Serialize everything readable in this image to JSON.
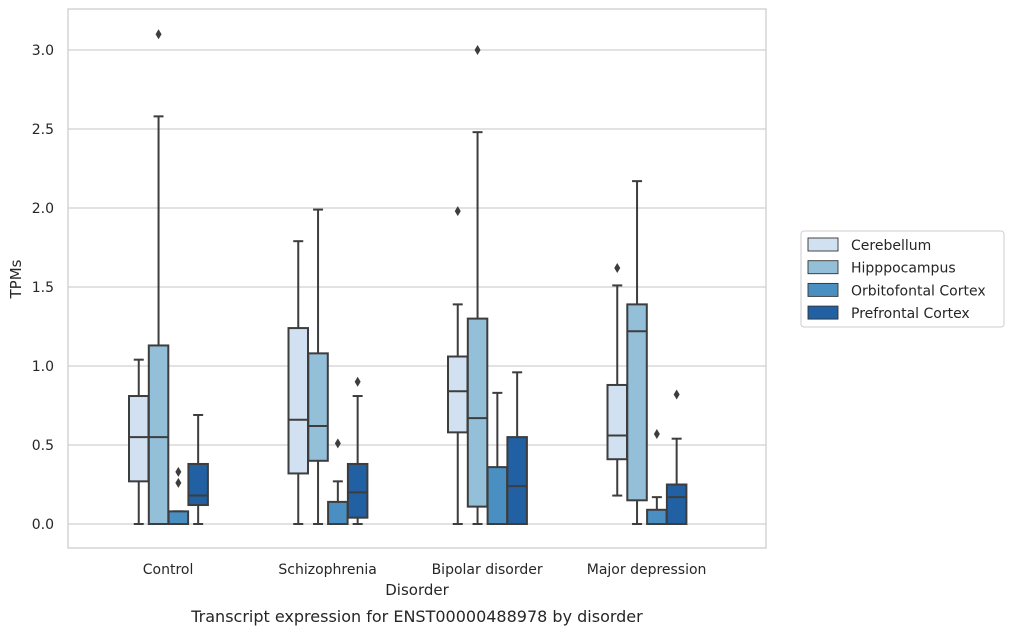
{
  "chart_data": {
    "type": "box",
    "xlabel": "Disorder",
    "ylabel": "TPMs",
    "caption": "Transcript expression for ENST00000488978 by disorder",
    "categories": [
      "Control",
      "Schizophrenia",
      "Bipolar disorder",
      "Major depression"
    ],
    "yticks": [
      "0.0",
      "0.5",
      "1.0",
      "1.5",
      "2.0",
      "2.5",
      "3.0"
    ],
    "ylim": [
      -0.15,
      3.25
    ],
    "grid": "horizontal",
    "legend_position": "right",
    "series": [
      {
        "name": "Cerebellum",
        "color": "#d1e1f1",
        "boxes": [
          {
            "min": 0.0,
            "q1": 0.27,
            "median": 0.55,
            "q3": 0.81,
            "max": 1.04,
            "outliers": []
          },
          {
            "min": 0.0,
            "q1": 0.32,
            "median": 0.66,
            "q3": 1.24,
            "max": 1.79,
            "outliers": []
          },
          {
            "min": 0.0,
            "q1": 0.58,
            "median": 0.84,
            "q3": 1.06,
            "max": 1.39,
            "outliers": [
              1.98
            ]
          },
          {
            "min": 0.18,
            "q1": 0.41,
            "median": 0.56,
            "q3": 0.88,
            "max": 1.51,
            "outliers": [
              1.62
            ]
          }
        ]
      },
      {
        "name": "Hipppocampus",
        "color": "#94bfd9",
        "boxes": [
          {
            "min": 0.0,
            "q1": 0.0,
            "median": 0.55,
            "q3": 1.13,
            "max": 2.58,
            "outliers": [
              3.1
            ]
          },
          {
            "min": 0.0,
            "q1": 0.4,
            "median": 0.62,
            "q3": 1.08,
            "max": 1.99,
            "outliers": []
          },
          {
            "min": 0.0,
            "q1": 0.11,
            "median": 0.67,
            "q3": 1.3,
            "max": 2.48,
            "outliers": [
              3.0
            ]
          },
          {
            "min": 0.0,
            "q1": 0.15,
            "median": 1.22,
            "q3": 1.39,
            "max": 2.17,
            "outliers": []
          }
        ]
      },
      {
        "name": "Orbitofontal Cortex",
        "color": "#4a8fc2",
        "boxes": [
          {
            "min": 0.0,
            "q1": 0.0,
            "median": 0.0,
            "q3": 0.08,
            "max": 0.08,
            "outliers": [
              0.26,
              0.33
            ]
          },
          {
            "min": 0.0,
            "q1": 0.0,
            "median": 0.0,
            "q3": 0.14,
            "max": 0.27,
            "outliers": [
              0.51
            ]
          },
          {
            "min": 0.0,
            "q1": 0.0,
            "median": 0.0,
            "q3": 0.36,
            "max": 0.83,
            "outliers": []
          },
          {
            "min": 0.0,
            "q1": 0.0,
            "median": 0.0,
            "q3": 0.09,
            "max": 0.17,
            "outliers": [
              0.57
            ]
          }
        ]
      },
      {
        "name": "Prefrontal Cortex",
        "color": "#2060a3",
        "boxes": [
          {
            "min": 0.0,
            "q1": 0.12,
            "median": 0.18,
            "q3": 0.38,
            "max": 0.69,
            "outliers": []
          },
          {
            "min": 0.0,
            "q1": 0.04,
            "median": 0.2,
            "q3": 0.38,
            "max": 0.81,
            "outliers": [
              0.9
            ]
          },
          {
            "min": 0.0,
            "q1": 0.0,
            "median": 0.24,
            "q3": 0.55,
            "max": 0.96,
            "outliers": []
          },
          {
            "min": 0.0,
            "q1": 0.0,
            "median": 0.17,
            "q3": 0.25,
            "max": 0.54,
            "outliers": [
              0.82
            ]
          }
        ]
      }
    ]
  }
}
